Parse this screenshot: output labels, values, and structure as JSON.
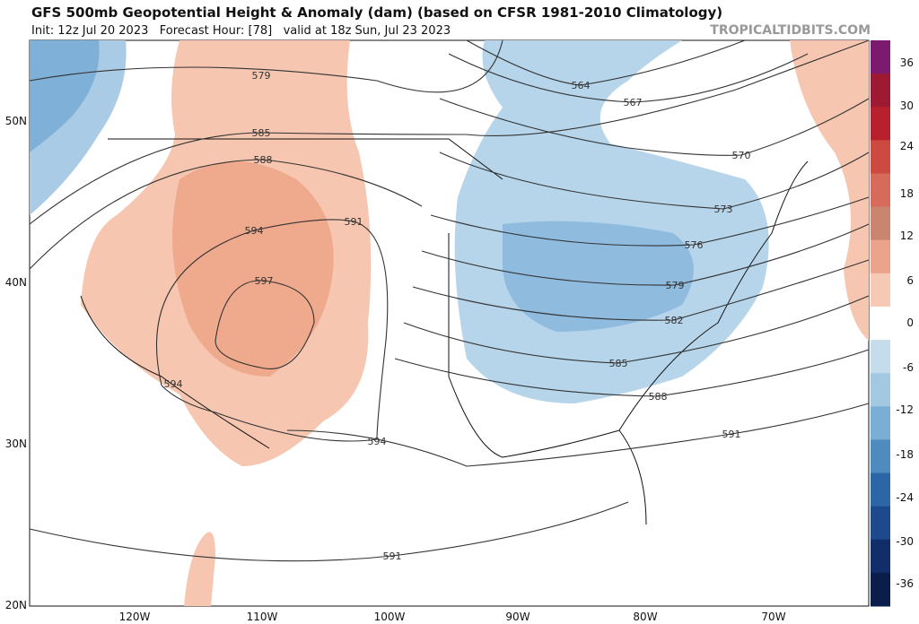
{
  "header": {
    "title": "GFS 500mb Geopotential Height & Anomaly (dam) (based on CFSR 1981-2010 Climatology)",
    "subtitle": "Init: 12z Jul 20 2023   Forecast Hour: [78]   valid at 18z Sun, Jul 23 2023",
    "source": "TROPICALTIDBITS.COM"
  },
  "map": {
    "lat_labels": [
      "50N",
      "40N",
      "30N",
      "20N"
    ],
    "lon_labels": [
      "120W",
      "110W",
      "100W",
      "90W",
      "80W",
      "70W"
    ],
    "contour_labels": [
      "579",
      "585",
      "588",
      "594",
      "591",
      "597",
      "594",
      "594",
      "564",
      "567",
      "570",
      "573",
      "576",
      "579",
      "582",
      "585",
      "588",
      "591",
      "591"
    ]
  },
  "colorbar": {
    "labels": [
      "36",
      "30",
      "24",
      "18",
      "12",
      "6",
      "0",
      "-6",
      "-12",
      "-18",
      "-24",
      "-30",
      "-36"
    ]
  }
}
